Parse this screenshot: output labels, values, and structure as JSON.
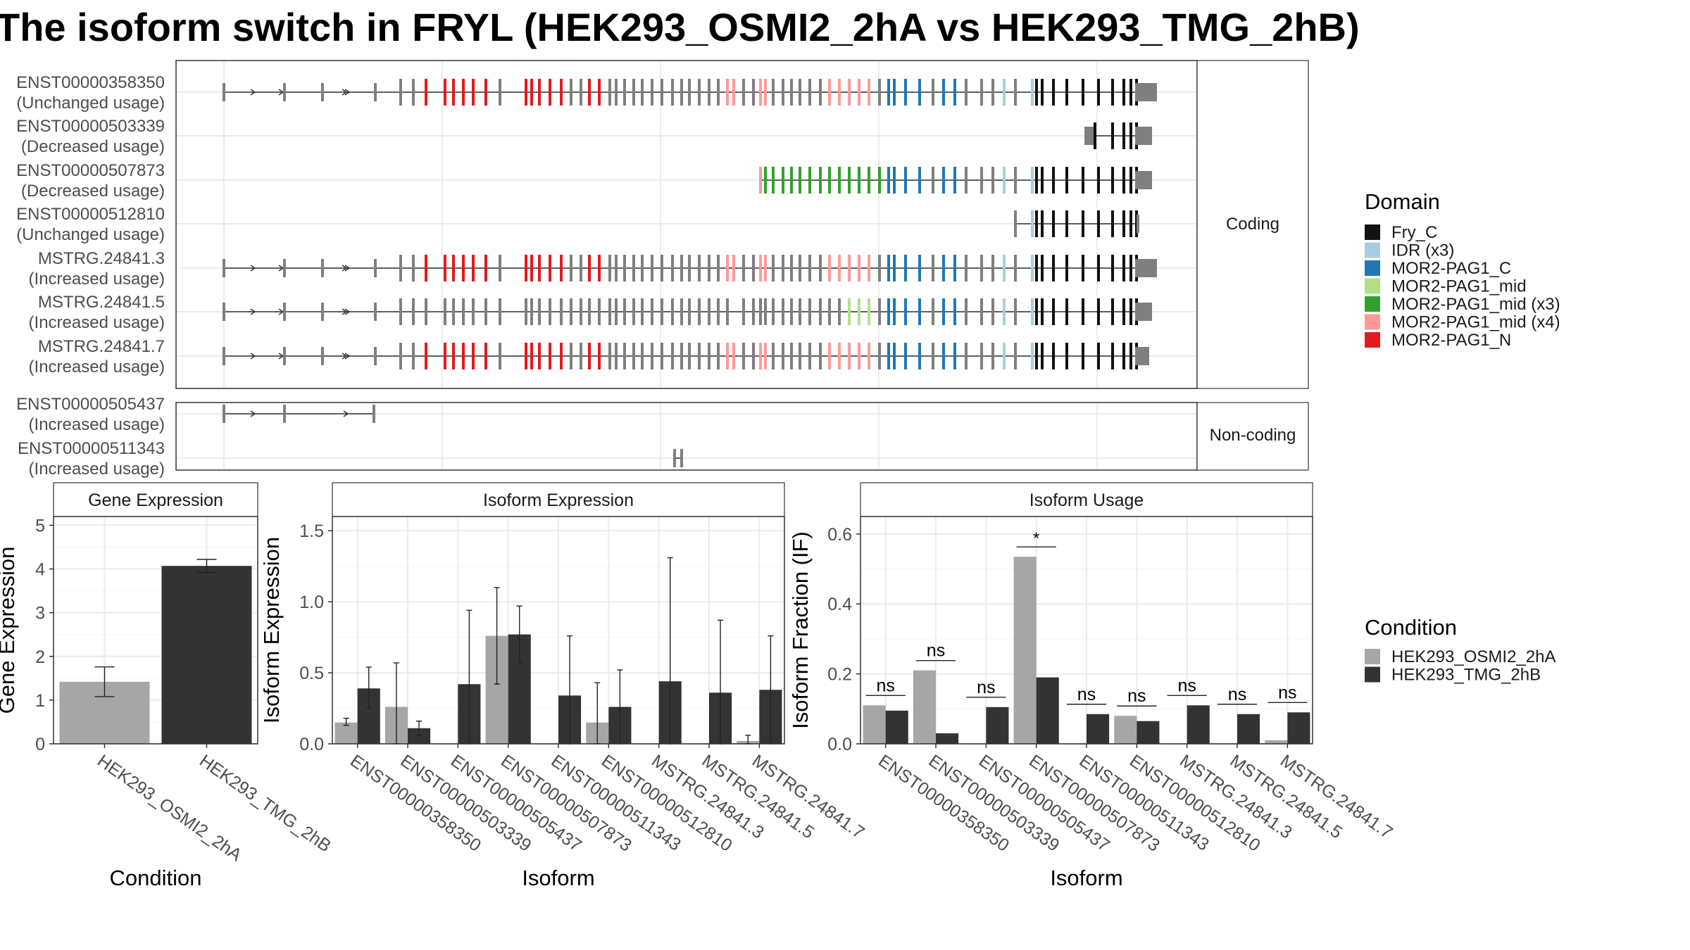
{
  "title": "The isoform switch in FRYL (HEK293_OSMI2_2hA vs HEK293_TMG_2hB)",
  "colors": {
    "Fry_C": "#111111",
    "IDR (x3)": "#a6cee3",
    "MOR2-PAG1_C": "#1f78b4",
    "MOR2-PAG1_mid": "#b2df8a",
    "MOR2-PAG1_mid (x3)": "#33a02c",
    "MOR2-PAG1_mid (x4)": "#fb9a99",
    "MOR2-PAG1_N": "#e31a1c",
    "untyped_exon": "#7f7f7f",
    "condition_a": "#a6a6a6",
    "condition_b": "#333333"
  },
  "structure": {
    "coding_strip": "Coding",
    "noncoding_strip": "Non-coding",
    "coding_transcripts": [
      {
        "id": "ENST00000358350",
        "usage": "(Unchanged usage)",
        "type": "full"
      },
      {
        "id": "ENST00000503339",
        "usage": "(Decreased usage)",
        "type": "short"
      },
      {
        "id": "ENST00000507873",
        "usage": "(Decreased usage)",
        "type": "mid"
      },
      {
        "id": "ENST00000512810",
        "usage": "(Unchanged usage)",
        "type": "tail"
      },
      {
        "id": "MSTRG.24841.3",
        "usage": "(Increased usage)",
        "type": "full"
      },
      {
        "id": "MSTRG.24841.5",
        "usage": "(Increased usage)",
        "type": "partial"
      },
      {
        "id": "MSTRG.24841.7",
        "usage": "(Increased usage)",
        "type": "full"
      }
    ],
    "noncoding_transcripts": [
      {
        "id": "ENST00000505437",
        "usage": "(Increased usage)",
        "type": "head"
      },
      {
        "id": "ENST00000511343",
        "usage": "(Increased usage)",
        "type": "tiny"
      }
    ]
  },
  "legend_domain": {
    "title": "Domain",
    "items": [
      "Fry_C",
      "IDR (x3)",
      "MOR2-PAG1_C",
      "MOR2-PAG1_mid",
      "MOR2-PAG1_mid (x3)",
      "MOR2-PAG1_mid (x4)",
      "MOR2-PAG1_N"
    ]
  },
  "legend_condition": {
    "title": "Condition",
    "items": [
      "HEK293_OSMI2_2hA",
      "HEK293_TMG_2hB"
    ]
  },
  "chart_data": [
    {
      "type": "bar",
      "title": "Gene Expression",
      "xlabel": "Condition",
      "ylabel": "Gene Expression",
      "ylim": [
        0,
        5.2
      ],
      "yticks": [
        0,
        1,
        2,
        3,
        4,
        5
      ],
      "categories": [
        "HEK293_OSMI2_2hA",
        "HEK293_TMG_2hB"
      ],
      "values": [
        1.42,
        4.07
      ],
      "error_low": [
        1.08,
        3.92
      ],
      "error_high": [
        1.76,
        4.22
      ]
    },
    {
      "type": "bar",
      "title": "Isoform Expression",
      "xlabel": "Isoform",
      "ylabel": "Isoform Expression",
      "ylim": [
        0,
        1.6
      ],
      "yticks": [
        0.0,
        0.5,
        1.0,
        1.5
      ],
      "categories": [
        "ENST00000358350",
        "ENST00000503339",
        "ENST00000505437",
        "ENST00000507873",
        "ENST00000511343",
        "ENST00000512810",
        "MSTRG.24841.3",
        "MSTRG.24841.5",
        "MSTRG.24841.7"
      ],
      "series": [
        {
          "name": "HEK293_OSMI2_2hA",
          "values": [
            0.15,
            0.26,
            0.0,
            0.76,
            0.0,
            0.15,
            0.0,
            0.0,
            0.02
          ],
          "error_low": [
            0.13,
            0.0,
            0.0,
            0.42,
            0.0,
            0.0,
            0.0,
            0.0,
            0.0
          ],
          "error_high": [
            0.18,
            0.57,
            0.0,
            1.1,
            0.0,
            0.43,
            0.0,
            0.0,
            0.06
          ]
        },
        {
          "name": "HEK293_TMG_2hB",
          "values": [
            0.39,
            0.11,
            0.42,
            0.77,
            0.34,
            0.26,
            0.44,
            0.36,
            0.38
          ],
          "error_low": [
            0.25,
            0.06,
            0.0,
            0.57,
            0.0,
            0.0,
            0.0,
            0.0,
            0.0
          ],
          "error_high": [
            0.54,
            0.16,
            0.94,
            0.97,
            0.76,
            0.52,
            1.31,
            0.87,
            0.76
          ]
        }
      ]
    },
    {
      "type": "bar",
      "title": "Isoform Usage",
      "xlabel": "Isoform",
      "ylabel": "Isoform Fraction (IF)",
      "ylim": [
        0,
        0.65
      ],
      "yticks": [
        0.0,
        0.2,
        0.4,
        0.6
      ],
      "categories": [
        "ENST00000358350",
        "ENST00000503339",
        "ENST00000505437",
        "ENST00000507873",
        "ENST00000511343",
        "ENST00000512810",
        "MSTRG.24841.3",
        "MSTRG.24841.5",
        "MSTRG.24841.7"
      ],
      "series": [
        {
          "name": "HEK293_OSMI2_2hA",
          "values": [
            0.11,
            0.21,
            0.0,
            0.535,
            0.0,
            0.08,
            0.0,
            0.0,
            0.01
          ]
        },
        {
          "name": "HEK293_TMG_2hB",
          "values": [
            0.095,
            0.03,
            0.105,
            0.19,
            0.085,
            0.065,
            0.11,
            0.085,
            0.09
          ]
        }
      ],
      "significance": [
        "ns",
        "ns",
        "ns",
        "*",
        "ns",
        "ns",
        "ns",
        "ns",
        "ns"
      ]
    }
  ]
}
